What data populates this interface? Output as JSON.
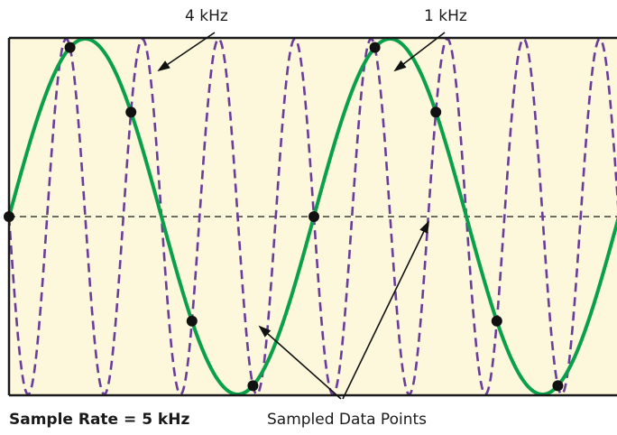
{
  "labels": {
    "signal_a": "4 kHz",
    "signal_b": "1 kHz",
    "sample_rate_prefix": "Sample Rate",
    "sample_rate_sep": " = ",
    "sample_rate_value": "5 kHz",
    "sampled_points": "Sampled Data Points"
  },
  "signals": {
    "fast_freq_khz": 4,
    "slow_freq_khz": 1,
    "sample_rate_khz": 5
  },
  "colors": {
    "background": "#fdf8dc",
    "frame": "#1a1a1a",
    "slow_wave": "#0aa04a",
    "fast_wave": "#6a3d9a",
    "points": "#111111",
    "arrows": "#111111"
  }
}
